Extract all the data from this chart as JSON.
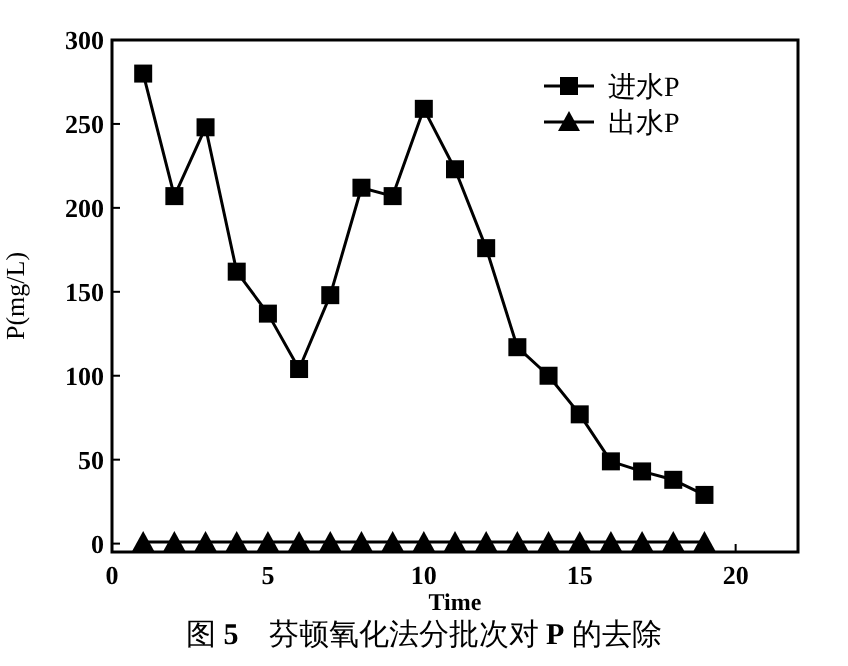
{
  "chart_data": {
    "type": "line",
    "title": "图 **5**　芬顿氧化法分批次对 **P** 的去除",
    "xlabel": "Time",
    "ylabel": "P(mg/L)",
    "x": [
      1,
      2,
      3,
      4,
      5,
      6,
      7,
      8,
      9,
      10,
      11,
      12,
      13,
      14,
      15,
      16,
      17,
      18,
      19
    ],
    "series": [
      {
        "name": "进水P",
        "color": "#000000",
        "marker": "square",
        "values": [
          280,
          207,
          248,
          162,
          137,
          104,
          148,
          212,
          207,
          259,
          223,
          176,
          117,
          100,
          77,
          49,
          43,
          38,
          29
        ]
      },
      {
        "name": "出水P",
        "color": "#000000",
        "marker": "triangle",
        "values": [
          1,
          1,
          1,
          1,
          1,
          1,
          1,
          1,
          1,
          1,
          1,
          1,
          1,
          1,
          1,
          1,
          1,
          1,
          1
        ]
      }
    ],
    "xlim": [
      0,
      22
    ],
    "ylim": [
      -5,
      300
    ],
    "xticks": [
      0,
      5,
      10,
      15,
      20
    ],
    "yticks": [
      0,
      50,
      100,
      150,
      200,
      250,
      300
    ],
    "grid": false,
    "legend": "top right",
    "line_style": "solid"
  }
}
